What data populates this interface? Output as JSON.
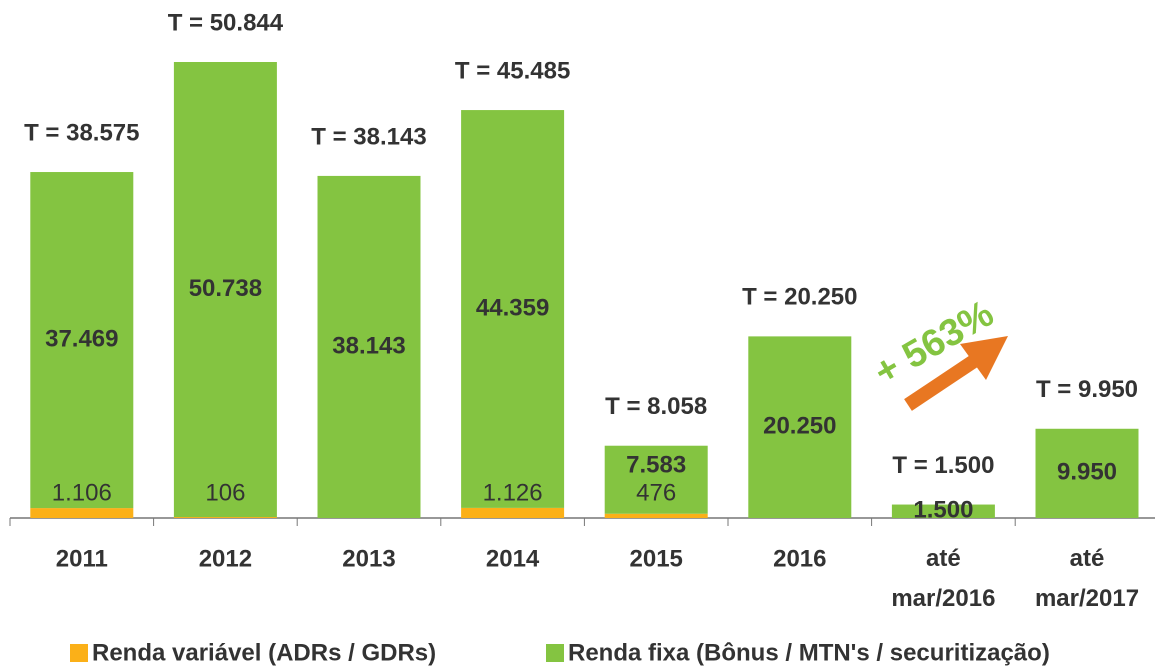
{
  "chart_data": {
    "type": "stacked_bar",
    "categories": [
      "2011",
      "2012",
      "2013",
      "2014",
      "2015",
      "2016",
      "até mar/2016",
      "até mar/2017"
    ],
    "series": [
      {
        "name": "Renda variável (ADRs / GDRs)",
        "color": "#fbb018",
        "values": [
          1106,
          106,
          0,
          1126,
          476,
          0,
          0,
          0
        ],
        "value_labels": [
          "1.106",
          "106",
          null,
          "1.126",
          "476",
          null,
          null,
          null
        ]
      },
      {
        "name": "Renda fixa (Bônus / MTN's / securitização)",
        "color": "#84c441",
        "values": [
          37469,
          50738,
          38143,
          44359,
          7583,
          20250,
          1500,
          9950
        ],
        "value_labels": [
          "37.469",
          "50.738",
          "38.143",
          "44.359",
          "7.583",
          "20.250",
          "1.500",
          "9.950"
        ]
      }
    ],
    "totals": [
      38575,
      50844,
      38143,
      45485,
      8058,
      20250,
      1500,
      9950
    ],
    "total_labels": [
      "T = 38.575",
      "T = 50.844",
      "T = 38.143",
      "T = 45.485",
      "T = 8.058",
      "T = 20.250",
      "T = 1.500",
      "T = 9.950"
    ],
    "annotation": "+ 563%",
    "annotation_color": "#84c441",
    "arrow_color": "#e87722"
  }
}
